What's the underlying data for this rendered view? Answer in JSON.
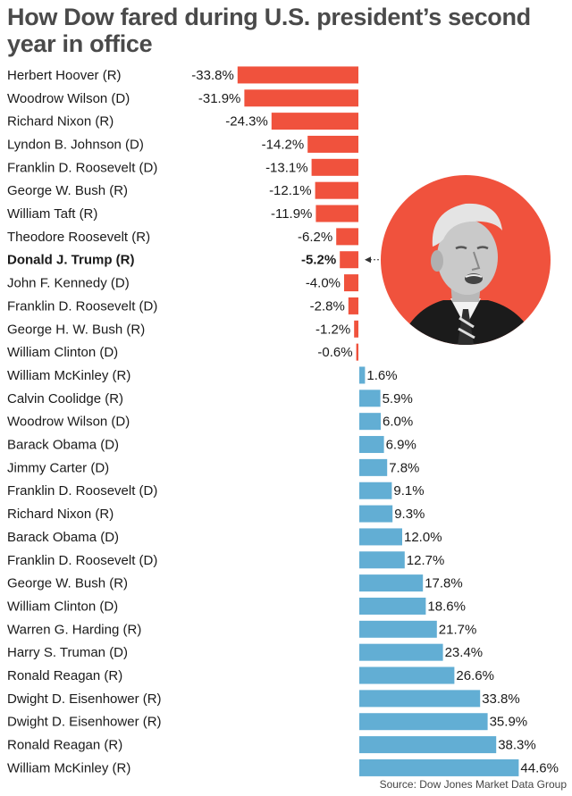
{
  "title": "How Dow fared during U.S. president’s second year in office",
  "source": "Source: Dow Jones Market Data Group",
  "colors": {
    "negative": "#f0523d",
    "positive": "#62aed4",
    "portrait_bg": "#f0523d"
  },
  "highlight": "Donald J. Trump (R)",
  "chart_data": {
    "type": "bar",
    "orientation": "horizontal",
    "title": "How Dow fared during U.S. president’s second year in office",
    "unit": "%",
    "categories": [
      "Herbert Hoover (R)",
      "Woodrow Wilson (D)",
      "Richard Nixon (R)",
      "Lyndon B. Johnson (D)",
      "Franklin D. Roosevelt (D)",
      "George W. Bush (R)",
      "William Taft (R)",
      "Theodore Roosevelt (R)",
      "Donald J. Trump (R)",
      "John F. Kennedy (D)",
      "Franklin D. Roosevelt (D)",
      "George H. W. Bush (R)",
      "William Clinton (D)",
      "William McKinley (R)",
      "Calvin Coolidge (R)",
      "Woodrow Wilson (D)",
      "Barack Obama (D)",
      "Jimmy Carter (D)",
      "Franklin D. Roosevelt (D)",
      "Richard Nixon (R)",
      "Barack Obama (D)",
      "Franklin D. Roosevelt (D)",
      "George W. Bush (R)",
      "William Clinton (D)",
      "Warren G. Harding (R)",
      "Harry S. Truman (D)",
      "Ronald Reagan (R)",
      "Dwight D. Eisenhower (R)",
      "Dwight D. Eisenhower (R)",
      "Ronald Reagan (R)",
      "William McKinley (R)"
    ],
    "values": [
      -33.8,
      -31.9,
      -24.3,
      -14.2,
      -13.1,
      -12.1,
      -11.9,
      -6.2,
      -5.2,
      -4.0,
      -2.8,
      -1.2,
      -0.6,
      1.6,
      5.9,
      6.0,
      6.9,
      7.8,
      9.1,
      9.3,
      12.0,
      12.7,
      17.8,
      18.6,
      21.7,
      23.4,
      26.6,
      33.8,
      35.9,
      38.3,
      44.6
    ],
    "labels": [
      "-33.8%",
      "-31.9%",
      "-24.3%",
      "-14.2%",
      "-13.1%",
      "-12.1%",
      "-11.9%",
      "-6.2%",
      "-5.2%",
      "-4.0%",
      "-2.8%",
      "-1.2%",
      "-0.6%",
      "1.6%",
      "5.9%",
      "6.0%",
      "6.9%",
      "7.8%",
      "9.1%",
      "9.3%",
      "12.0%",
      "12.7%",
      "17.8%",
      "18.6%",
      "21.7%",
      "23.4%",
      "26.6%",
      "33.8%",
      "35.9%",
      "38.3%",
      "44.6%"
    ],
    "xlim": [
      -35,
      47
    ]
  }
}
